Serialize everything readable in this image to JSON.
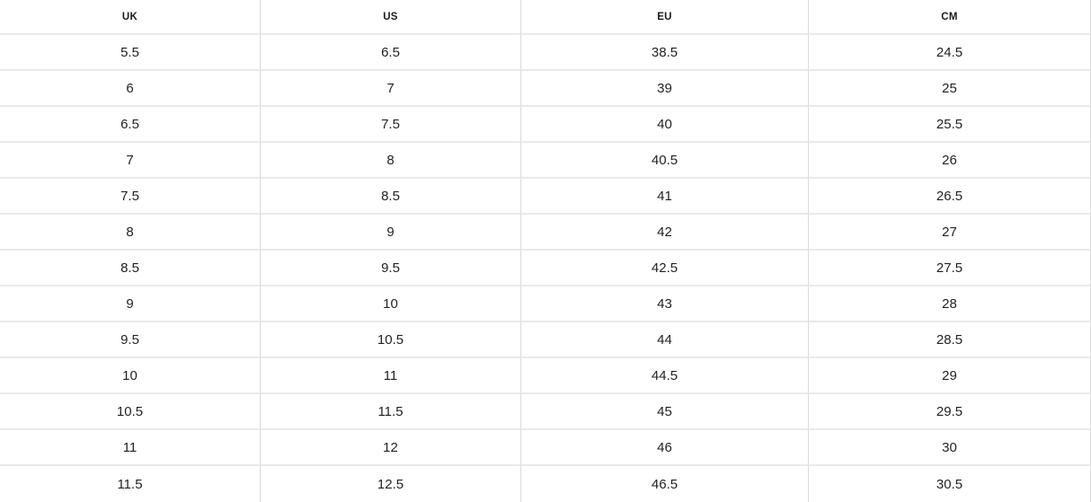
{
  "table": {
    "columns": [
      "UK",
      "US",
      "EU",
      "CM"
    ],
    "rows": [
      [
        "5.5",
        "6.5",
        "38.5",
        "24.5"
      ],
      [
        "6",
        "7",
        "39",
        "25"
      ],
      [
        "6.5",
        "7.5",
        "40",
        "25.5"
      ],
      [
        "7",
        "8",
        "40.5",
        "26"
      ],
      [
        "7.5",
        "8.5",
        "41",
        "26.5"
      ],
      [
        "8",
        "9",
        "42",
        "27"
      ],
      [
        "8.5",
        "9.5",
        "42.5",
        "27.5"
      ],
      [
        "9",
        "10",
        "43",
        "28"
      ],
      [
        "9.5",
        "10.5",
        "44",
        "28.5"
      ],
      [
        "10",
        "11",
        "44.5",
        "29"
      ],
      [
        "10.5",
        "11.5",
        "45",
        "29.5"
      ],
      [
        "11",
        "12",
        "46",
        "30"
      ],
      [
        "11.5",
        "12.5",
        "46.5",
        "30.5"
      ]
    ]
  },
  "colors": {
    "grid_vertical": "#dcdcdc",
    "grid_horizontal": "#e9e9e9",
    "header_text": "#1a1a1a",
    "body_text": "#222222",
    "background": "#ffffff"
  }
}
